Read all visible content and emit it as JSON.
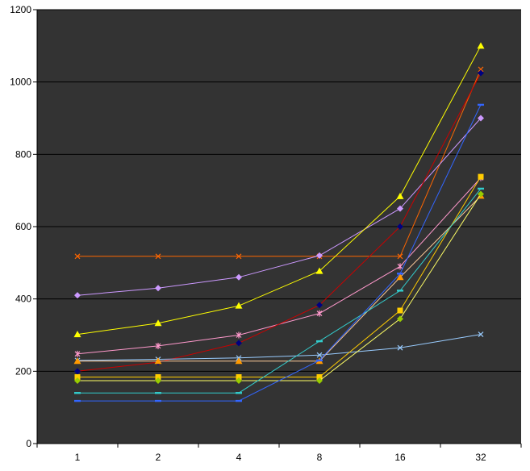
{
  "chart_data": {
    "type": "line",
    "title": "",
    "xlabel": "",
    "ylabel": "",
    "categories": [
      "1",
      "2",
      "4",
      "8",
      "16",
      "32"
    ],
    "ylim": [
      0,
      1200
    ],
    "yticks": [
      "0",
      "200",
      "400",
      "600",
      "800",
      "1000",
      "1200"
    ],
    "grid": "horizontal",
    "legend": "none",
    "plot_background": "#333333",
    "series": [
      {
        "color": "#FF6600",
        "marker": "x",
        "values": [
          518,
          518,
          518,
          518,
          518,
          1035
        ]
      },
      {
        "color": "#CC99FF",
        "marker": "diamond",
        "values": [
          410,
          430,
          460,
          520,
          650,
          900
        ]
      },
      {
        "color": "#FFFF00",
        "marker": "triangle",
        "values": [
          302,
          333,
          381,
          477,
          684,
          1100
        ]
      },
      {
        "color": "#FF99CC",
        "marker": "star",
        "values": [
          248,
          270,
          300,
          360,
          490,
          735
        ]
      },
      {
        "color": "#CC0000",
        "marker": "diamond",
        "values": [
          200,
          225,
          278,
          383,
          600,
          1025
        ],
        "marker_color": "#000080"
      },
      {
        "color": "#99CCFF",
        "marker": "x",
        "values": [
          230,
          233,
          237,
          245,
          265,
          302
        ]
      },
      {
        "color": "#FFCC99",
        "marker": "triangle",
        "values": [
          228,
          228,
          228,
          228,
          460,
          685
        ],
        "marker_color": "#FF9900"
      },
      {
        "color": "#FFCC00",
        "marker": "square",
        "values": [
          184,
          184,
          184,
          184,
          368,
          738
        ]
      },
      {
        "color": "#FFFF66",
        "marker": "diamond",
        "values": [
          174,
          174,
          174,
          174,
          345,
          690
        ],
        "marker_color": "#99CC00"
      },
      {
        "color": "#33CCCC",
        "marker": "dash",
        "values": [
          140,
          140,
          140,
          283,
          423,
          705
        ]
      },
      {
        "color": "#3366FF",
        "marker": "dash",
        "values": [
          118,
          118,
          118,
          230,
          470,
          937
        ]
      }
    ]
  }
}
